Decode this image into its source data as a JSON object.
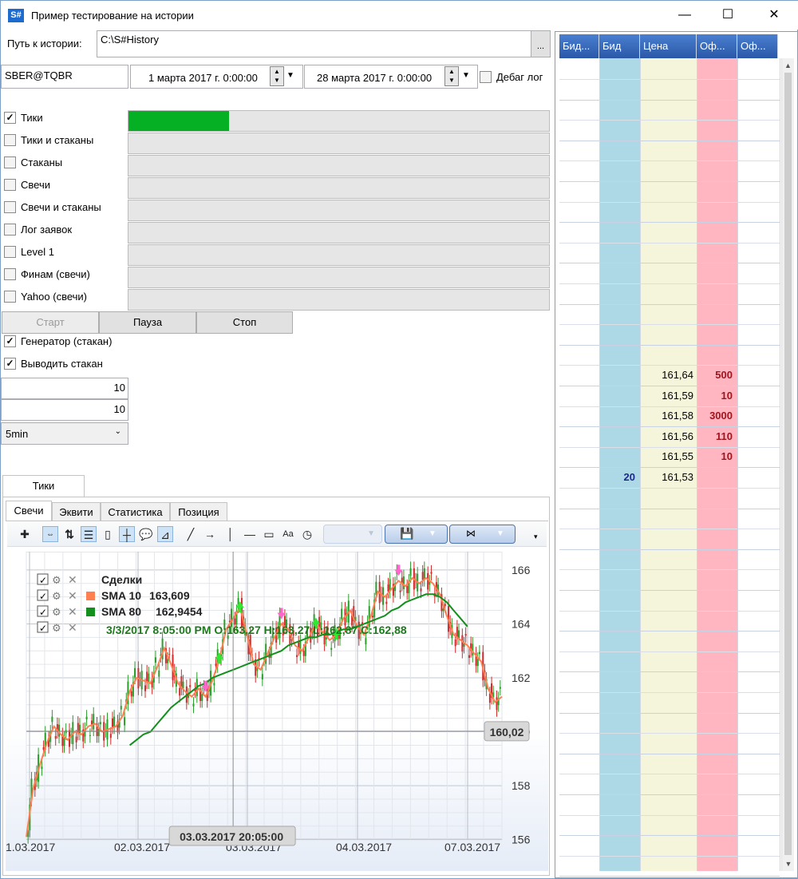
{
  "window": {
    "icon_text": "S#",
    "title": "Пример тестирование на истории",
    "minimize": "—",
    "maximize": "☐",
    "close": "✕"
  },
  "history": {
    "label": "Путь к истории:",
    "path": "C:\\S#History",
    "browse": "..."
  },
  "params": {
    "security": "SBER@TQBR",
    "from": "1 марта 2017 г. 0:00:00",
    "to": "28 марта 2017 г. 0:00:00",
    "debug_label": "Дебаг лог"
  },
  "modes": [
    {
      "label": "Тики",
      "checked": true,
      "progress": 0.24
    },
    {
      "label": "Тики и стаканы",
      "checked": false,
      "progress": 0
    },
    {
      "label": "Стаканы",
      "checked": false,
      "progress": 0
    },
    {
      "label": "Свечи",
      "checked": false,
      "progress": 0
    },
    {
      "label": "Свечи и стаканы",
      "checked": false,
      "progress": 0
    },
    {
      "label": "Лог заявок",
      "checked": false,
      "progress": 0
    },
    {
      "label": "Level 1",
      "checked": false,
      "progress": 0
    },
    {
      "label": "Финам (свечи)",
      "checked": false,
      "progress": 0
    },
    {
      "label": "Yahoo (свечи)",
      "checked": false,
      "progress": 0
    }
  ],
  "controls": {
    "start": "Старт",
    "pause": "Пауза",
    "stop": "Стоп",
    "generator": "Генератор (стакан)",
    "show_depth": "Выводить стакан",
    "value1": "10",
    "value2": "10",
    "timeframe": "5min"
  },
  "tabs": {
    "outer": "Тики",
    "inner": [
      "Свечи",
      "Эквити",
      "Статистика",
      "Позиция"
    ]
  },
  "chart_data": {
    "type": "line",
    "legend": [
      {
        "name": "Сделки",
        "value": ""
      },
      {
        "name": "SMA 10",
        "value": "163,609"
      },
      {
        "name": "SMA 80",
        "value": "162,9454"
      }
    ],
    "ohlc_label": "3/3/2017 8:05:00 PM O:163,27 H:163,27 L:162,87 C:162,88",
    "x_ticks": [
      "1.03.2017",
      "02.03.2017",
      "03.03.2017",
      "04.03.2017",
      "07.03.2017"
    ],
    "y_ticks": [
      "156",
      "158",
      "160",
      "162",
      "164",
      "166"
    ],
    "ylim": [
      155.7,
      166.5
    ],
    "crosshair_x": "03.03.2017 20:05:00",
    "crosshair_y": "160,02",
    "colors": {
      "sma10": "#ff7f50",
      "sma80": "#138f1c",
      "candle_up": "#2a9d2a",
      "candle_down": "#d22a2a"
    },
    "sma10": [
      156.1,
      157.9,
      158.8,
      159.6,
      160.2,
      159.9,
      159.7,
      160.0,
      159.9,
      160.2,
      160.3,
      160.0,
      160.1,
      160.2,
      160.6,
      161.5,
      162.0,
      161.9,
      161.8,
      162.4,
      163.1,
      162.5,
      161.8,
      161.5,
      161.3,
      161.6,
      161.3,
      161.9,
      162.7,
      163.8,
      164.2,
      164.6,
      163.6,
      162.5,
      162.3,
      162.9,
      163.5,
      164.0,
      163.8,
      163.2,
      163.0,
      163.5,
      164.0,
      163.7,
      163.4,
      163.6,
      164.2,
      164.5,
      163.9,
      163.6,
      164.3,
      165.2,
      165.0,
      165.3,
      165.6,
      165.4,
      165.7,
      165.5,
      165.7,
      165.5,
      165.1,
      164.3,
      163.6,
      163.4,
      163.2,
      162.9,
      162.6,
      161.6,
      161.1,
      161.3
    ],
    "sma80": [
      null,
      null,
      null,
      null,
      null,
      null,
      null,
      null,
      null,
      null,
      null,
      null,
      null,
      null,
      null,
      159.5,
      159.7,
      159.9,
      160.0,
      160.3,
      160.6,
      160.9,
      161.1,
      161.3,
      161.5,
      161.7,
      161.8,
      162.0,
      162.1,
      162.2,
      162.3,
      162.4,
      162.5,
      162.6,
      162.7,
      162.8,
      162.9,
      163.0,
      163.2,
      163.3,
      163.4,
      163.5,
      163.5,
      163.6,
      163.6,
      163.7,
      163.8,
      163.8,
      163.9,
      164.0,
      164.1,
      164.2,
      164.3,
      164.5,
      164.6,
      164.8,
      164.9,
      165.0,
      165.1,
      165.1,
      165.0,
      164.8,
      164.5,
      164.2,
      163.9,
      null,
      null,
      null,
      null,
      null
    ]
  },
  "orderbook": {
    "headers": [
      "Бид...",
      "Бид",
      "Цена",
      "Оф...",
      "Оф..."
    ],
    "rows": [
      {
        "price": "161,64",
        "ask": "500",
        "bid": ""
      },
      {
        "price": "161,59",
        "ask": "10",
        "bid": ""
      },
      {
        "price": "161,58",
        "ask": "3000",
        "bid": ""
      },
      {
        "price": "161,56",
        "ask": "110",
        "bid": ""
      },
      {
        "price": "161,55",
        "ask": "10",
        "bid": ""
      },
      {
        "price": "161,53",
        "ask": "",
        "bid": "20"
      }
    ]
  }
}
